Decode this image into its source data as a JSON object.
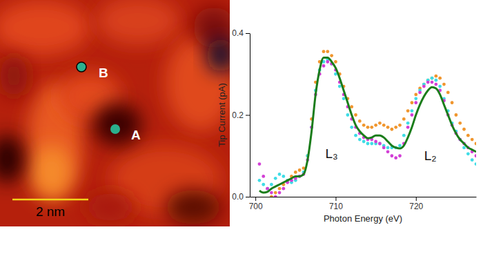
{
  "chart_data": {
    "type": "line",
    "x_label": "Photon Energy (eV)",
    "y_label": "Tip Current (pA)",
    "x": [
      700.5,
      701,
      701.5,
      702,
      702.5,
      703,
      703.5,
      704,
      704.5,
      705,
      705.5,
      706,
      706.5,
      707,
      707.5,
      708,
      708.5,
      709,
      709.5,
      710,
      710.5,
      711,
      711.5,
      712,
      712.5,
      713,
      713.5,
      714,
      714.5,
      715,
      715.5,
      716,
      716.5,
      717,
      717.5,
      718,
      718.5,
      719,
      719.5,
      720,
      720.5,
      721,
      721.5,
      722,
      722.5,
      723,
      723.5,
      724,
      724.5,
      725,
      725.5,
      726,
      726.5,
      727,
      727.5
    ],
    "series": [
      {
        "type": "scatter",
        "marker": "circle",
        "color": "#f0962e",
        "values": [
          null,
          null,
          null,
          0.0,
          0.01,
          0.02,
          0.03,
          0.04,
          0.05,
          0.06,
          0.065,
          0.07,
          0.1,
          0.19,
          0.28,
          0.33,
          0.355,
          0.355,
          0.345,
          0.33,
          0.3,
          0.27,
          0.24,
          0.22,
          0.2,
          0.185,
          0.175,
          0.17,
          0.17,
          0.175,
          0.18,
          0.175,
          0.17,
          0.165,
          0.17,
          0.175,
          0.19,
          0.21,
          0.23,
          0.25,
          0.265,
          0.275,
          0.285,
          0.29,
          0.295,
          0.29,
          0.275,
          0.255,
          0.23,
          0.2,
          0.18,
          0.165,
          0.15,
          0.14,
          0.13
        ]
      },
      {
        "type": "scatter",
        "marker": "circle",
        "color": "#3fdce6",
        "values": [
          0.04,
          0.03,
          0.02,
          0.03,
          0.045,
          0.055,
          0.05,
          0.04,
          0.035,
          0.04,
          0.05,
          0.06,
          0.1,
          0.17,
          0.26,
          0.31,
          0.33,
          0.335,
          0.325,
          0.3,
          0.27,
          0.24,
          0.2,
          0.17,
          0.15,
          0.14,
          0.135,
          0.13,
          0.13,
          0.13,
          0.13,
          0.125,
          0.12,
          0.12,
          0.12,
          0.125,
          0.15,
          0.18,
          0.21,
          0.24,
          0.26,
          0.275,
          0.285,
          0.29,
          0.285,
          0.27,
          0.24,
          0.21,
          0.18,
          0.16,
          0.14,
          0.12,
          0.105,
          0.09,
          0.08
        ]
      },
      {
        "type": "scatter",
        "marker": "circle",
        "color": "#d23fd6",
        "values": [
          0.08,
          0.05,
          0.02,
          0.01,
          0.0,
          0.01,
          0.02,
          0.035,
          0.04,
          0.045,
          0.05,
          0.055,
          0.09,
          0.17,
          0.25,
          0.3,
          0.32,
          0.33,
          0.325,
          0.31,
          0.28,
          0.25,
          0.22,
          0.19,
          0.17,
          0.155,
          0.145,
          0.14,
          0.14,
          0.135,
          0.13,
          0.12,
          0.11,
          0.1,
          0.095,
          0.1,
          0.13,
          0.17,
          0.2,
          0.23,
          0.255,
          0.27,
          0.28,
          0.28,
          0.275,
          0.26,
          0.235,
          0.2,
          0.175,
          0.155,
          0.14,
          0.13,
          0.12,
          0.11,
          0.1
        ]
      },
      {
        "type": "line",
        "line_style": "solid",
        "color": "#1b7d1b",
        "values": [
          0.015,
          0.01,
          0.012,
          0.02,
          0.025,
          0.03,
          0.035,
          0.04,
          0.045,
          0.05,
          0.05,
          0.055,
          0.09,
          0.16,
          0.25,
          0.31,
          0.34,
          0.34,
          0.33,
          0.315,
          0.29,
          0.26,
          0.23,
          0.2,
          0.175,
          0.16,
          0.15,
          0.143,
          0.145,
          0.15,
          0.15,
          0.145,
          0.135,
          0.125,
          0.12,
          0.118,
          0.125,
          0.145,
          0.17,
          0.2,
          0.225,
          0.245,
          0.26,
          0.268,
          0.265,
          0.25,
          0.225,
          0.2,
          0.175,
          0.155,
          0.14,
          0.13,
          0.12,
          0.115,
          0.11
        ]
      }
    ],
    "xlim": [
      699.3,
      727.5
    ],
    "xticks": [
      700,
      710,
      720
    ],
    "ylim": [
      0,
      0.4
    ],
    "yticks": [
      {
        "value": 0,
        "label": "0.0"
      },
      {
        "value": 0.2,
        "label": "0.2"
      },
      {
        "value": 0.4,
        "label": "0.4"
      }
    ],
    "annotations": [
      {
        "text": "L₃",
        "x": 709.5,
        "y": 0.095
      },
      {
        "text": "L₂",
        "x": 721.8,
        "y": 0.09
      }
    ]
  },
  "stm_image": {
    "labels": [
      "A",
      "B"
    ],
    "scale_bar": "2 nm"
  }
}
